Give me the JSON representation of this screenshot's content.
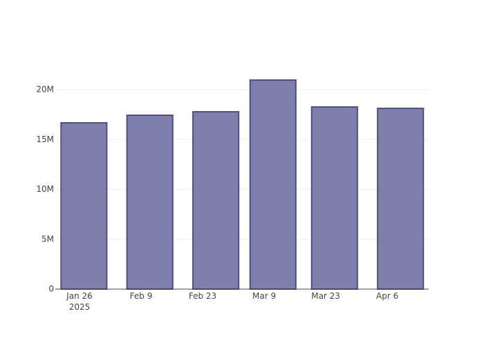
{
  "chart_data": {
    "type": "bar",
    "x": [
      "2025-01-27",
      "2025-02-11",
      "2025-02-26",
      "2025-03-11",
      "2025-03-25",
      "2025-04-09"
    ],
    "values": [
      16680000,
      17440000,
      17790000,
      20970000,
      18270000,
      18130000
    ],
    "color": "#7f7fae",
    "line_color": "#4d4d8a",
    "xlim": [
      "2025-01-20T12:00",
      "2025-04-15T10:00"
    ],
    "xticks": [
      {
        "value": "2025-01-26",
        "label": "Jan 26\n2025"
      },
      {
        "value": "2025-02-09",
        "label": "Feb 9"
      },
      {
        "value": "2025-02-23",
        "label": "Feb 23"
      },
      {
        "value": "2025-03-09",
        "label": "Mar 9"
      },
      {
        "value": "2025-03-23",
        "label": "Mar 23"
      },
      {
        "value": "2025-04-06",
        "label": "Apr 6"
      }
    ],
    "ylim": [
      0,
      22080000
    ],
    "yticks": [
      0,
      {
        "value": 5000000,
        "label": "5M"
      },
      {
        "value": 10000000,
        "label": "10M"
      },
      {
        "value": 15000000,
        "label": "15M"
      },
      {
        "value": 20000000,
        "label": "20M"
      }
    ],
    "grid": true
  }
}
